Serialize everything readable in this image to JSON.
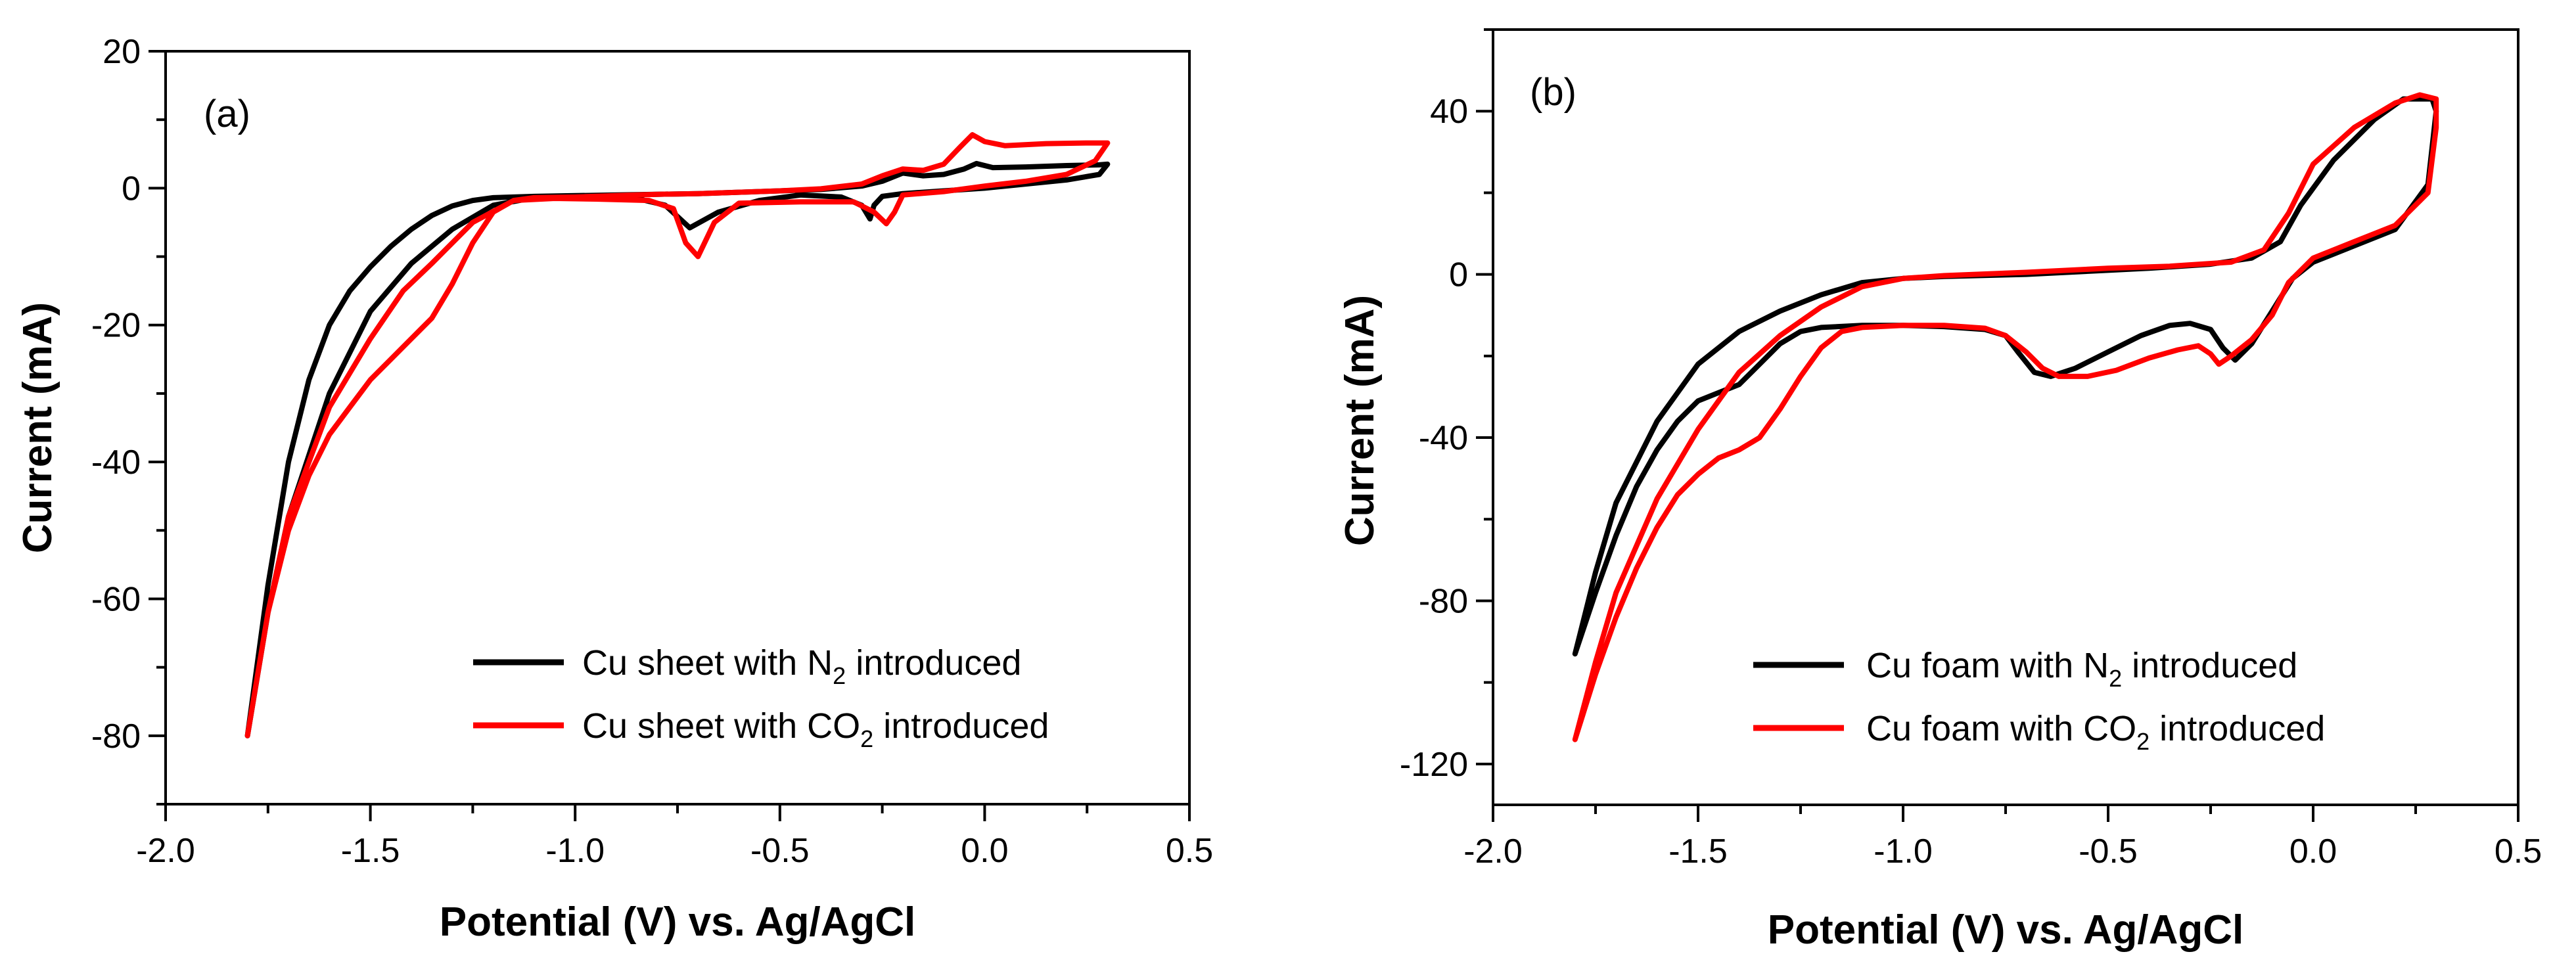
{
  "chart_data": [
    {
      "type": "line",
      "panel_label": "(a)",
      "xlabel": "Potential (V) vs. Ag/AgCl",
      "ylabel": "Current (mA)",
      "xlim": [
        -2.0,
        0.5
      ],
      "ylim": [
        -90,
        20
      ],
      "xticks": [
        -2.0,
        -1.5,
        -1.0,
        -0.5,
        0.0,
        0.5
      ],
      "xtick_labels": [
        "-2.0",
        "-1.5",
        "-1.0",
        "-0.5",
        "0.0",
        "0.5"
      ],
      "yticks": [
        -80,
        -60,
        -40,
        -20,
        0,
        20
      ],
      "ytick_labels": [
        "-80",
        "-60",
        "-40",
        "-20",
        "0",
        "20"
      ],
      "legend_position": "bottom-right",
      "series": [
        {
          "name_main": "Cu sheet with N",
          "name_sub": "2",
          "name_tail": " introduced",
          "color": "#000000",
          "points": [
            [
              -1.8,
              -80
            ],
            [
              -1.75,
              -58
            ],
            [
              -1.7,
              -40
            ],
            [
              -1.65,
              -28
            ],
            [
              -1.6,
              -20
            ],
            [
              -1.55,
              -15
            ],
            [
              -1.5,
              -11.5
            ],
            [
              -1.45,
              -8.5
            ],
            [
              -1.4,
              -6
            ],
            [
              -1.35,
              -4
            ],
            [
              -1.3,
              -2.6
            ],
            [
              -1.25,
              -1.8
            ],
            [
              -1.2,
              -1.4
            ],
            [
              -1.1,
              -1.2
            ],
            [
              -1.0,
              -1.1
            ],
            [
              -0.9,
              -1.0
            ],
            [
              -0.8,
              -0.9
            ],
            [
              -0.7,
              -0.8
            ],
            [
              -0.6,
              -0.6
            ],
            [
              -0.5,
              -0.4
            ],
            [
              -0.4,
              -0.2
            ],
            [
              -0.3,
              0.3
            ],
            [
              -0.25,
              1.0
            ],
            [
              -0.2,
              2.2
            ],
            [
              -0.15,
              1.8
            ],
            [
              -0.1,
              2.0
            ],
            [
              -0.05,
              2.8
            ],
            [
              -0.02,
              3.6
            ],
            [
              0.02,
              3.0
            ],
            [
              0.1,
              3.1
            ],
            [
              0.2,
              3.3
            ],
            [
              0.28,
              3.4
            ],
            [
              0.3,
              3.5
            ],
            [
              0.28,
              2.0
            ],
            [
              0.2,
              1.2
            ],
            [
              0.1,
              0.6
            ],
            [
              0.0,
              0.0
            ],
            [
              -0.1,
              -0.4
            ],
            [
              -0.2,
              -0.8
            ],
            [
              -0.25,
              -1.2
            ],
            [
              -0.27,
              -2.5
            ],
            [
              -0.28,
              -4.5
            ],
            [
              -0.3,
              -2.5
            ],
            [
              -0.35,
              -1.3
            ],
            [
              -0.45,
              -1.0
            ],
            [
              -0.55,
              -1.8
            ],
            [
              -0.65,
              -3.5
            ],
            [
              -0.72,
              -5.8
            ],
            [
              -0.78,
              -2.5
            ],
            [
              -0.85,
              -1.5
            ],
            [
              -1.0,
              -1.3
            ],
            [
              -1.1,
              -1.4
            ],
            [
              -1.2,
              -2.5
            ],
            [
              -1.3,
              -6
            ],
            [
              -1.4,
              -11
            ],
            [
              -1.5,
              -18
            ],
            [
              -1.6,
              -30
            ],
            [
              -1.7,
              -48
            ],
            [
              -1.75,
              -62
            ],
            [
              -1.8,
              -80
            ]
          ]
        },
        {
          "name_main": "Cu sheet with CO",
          "name_sub": "2",
          "name_tail": " introduced",
          "color": "#ff0000",
          "points": [
            [
              -1.8,
              -80
            ],
            [
              -1.75,
              -62
            ],
            [
              -1.7,
              -50
            ],
            [
              -1.65,
              -42
            ],
            [
              -1.6,
              -36
            ],
            [
              -1.55,
              -32
            ],
            [
              -1.5,
              -28
            ],
            [
              -1.45,
              -25
            ],
            [
              -1.4,
              -22
            ],
            [
              -1.35,
              -19
            ],
            [
              -1.3,
              -14
            ],
            [
              -1.25,
              -8
            ],
            [
              -1.2,
              -3.5
            ],
            [
              -1.15,
              -1.8
            ],
            [
              -1.1,
              -1.4
            ],
            [
              -1.0,
              -1.3
            ],
            [
              -0.9,
              -1.1
            ],
            [
              -0.8,
              -0.9
            ],
            [
              -0.7,
              -0.8
            ],
            [
              -0.6,
              -0.6
            ],
            [
              -0.5,
              -0.4
            ],
            [
              -0.4,
              -0.1
            ],
            [
              -0.3,
              0.6
            ],
            [
              -0.25,
              1.8
            ],
            [
              -0.2,
              2.8
            ],
            [
              -0.15,
              2.6
            ],
            [
              -0.1,
              3.5
            ],
            [
              -0.06,
              6.0
            ],
            [
              -0.03,
              7.8
            ],
            [
              0.0,
              6.8
            ],
            [
              0.05,
              6.2
            ],
            [
              0.15,
              6.5
            ],
            [
              0.25,
              6.6
            ],
            [
              0.3,
              6.6
            ],
            [
              0.27,
              4.0
            ],
            [
              0.2,
              2.0
            ],
            [
              0.1,
              1.0
            ],
            [
              0.0,
              0.3
            ],
            [
              -0.1,
              -0.5
            ],
            [
              -0.2,
              -1.0
            ],
            [
              -0.22,
              -3.5
            ],
            [
              -0.24,
              -5.2
            ],
            [
              -0.27,
              -3.5
            ],
            [
              -0.32,
              -2.0
            ],
            [
              -0.45,
              -2.0
            ],
            [
              -0.6,
              -2.2
            ],
            [
              -0.66,
              -5
            ],
            [
              -0.7,
              -10
            ],
            [
              -0.73,
              -8
            ],
            [
              -0.76,
              -3
            ],
            [
              -0.82,
              -1.8
            ],
            [
              -0.95,
              -1.6
            ],
            [
              -1.05,
              -1.5
            ],
            [
              -1.15,
              -1.8
            ],
            [
              -1.25,
              -5
            ],
            [
              -1.35,
              -11
            ],
            [
              -1.42,
              -15
            ],
            [
              -1.5,
              -22
            ],
            [
              -1.6,
              -32
            ],
            [
              -1.7,
              -48
            ],
            [
              -1.75,
              -62
            ],
            [
              -1.8,
              -80
            ]
          ]
        }
      ]
    },
    {
      "type": "line",
      "panel_label": "(b)",
      "xlabel": "Potential (V) vs. Ag/AgCl",
      "ylabel": "Current (mA)",
      "xlim": [
        -2.0,
        0.5
      ],
      "ylim": [
        -130,
        60
      ],
      "xticks": [
        -2.0,
        -1.5,
        -1.0,
        -0.5,
        0.0,
        0.5
      ],
      "xtick_labels": [
        "-2.0",
        "-1.5",
        "-1.0",
        "-0.5",
        "0.0",
        "0.5"
      ],
      "yticks": [
        -120,
        -80,
        -40,
        0,
        40
      ],
      "ytick_labels": [
        "-120",
        "-80",
        "-40",
        "0",
        "40"
      ],
      "legend_position": "bottom-right",
      "series": [
        {
          "name_main": "Cu foam with N",
          "name_sub": "2",
          "name_tail": " introduced",
          "color": "#000000",
          "points": [
            [
              -1.8,
              -93
            ],
            [
              -1.75,
              -78
            ],
            [
              -1.7,
              -64
            ],
            [
              -1.65,
              -52
            ],
            [
              -1.6,
              -43
            ],
            [
              -1.55,
              -36
            ],
            [
              -1.5,
              -31
            ],
            [
              -1.45,
              -29
            ],
            [
              -1.4,
              -27
            ],
            [
              -1.35,
              -22
            ],
            [
              -1.3,
              -17
            ],
            [
              -1.25,
              -14
            ],
            [
              -1.2,
              -13
            ],
            [
              -1.1,
              -12.5
            ],
            [
              -1.0,
              -12.5
            ],
            [
              -0.9,
              -12.8
            ],
            [
              -0.8,
              -13.5
            ],
            [
              -0.75,
              -15
            ],
            [
              -0.72,
              -19
            ],
            [
              -0.68,
              -24
            ],
            [
              -0.64,
              -25
            ],
            [
              -0.58,
              -23
            ],
            [
              -0.5,
              -19
            ],
            [
              -0.42,
              -15
            ],
            [
              -0.35,
              -12.5
            ],
            [
              -0.3,
              -12
            ],
            [
              -0.25,
              -13.5
            ],
            [
              -0.22,
              -18
            ],
            [
              -0.19,
              -21
            ],
            [
              -0.15,
              -17
            ],
            [
              -0.1,
              -9
            ],
            [
              -0.05,
              -1
            ],
            [
              0.0,
              3
            ],
            [
              0.1,
              7
            ],
            [
              0.2,
              11
            ],
            [
              0.28,
              22
            ],
            [
              0.3,
              40
            ],
            [
              0.29,
              43
            ],
            [
              0.22,
              43
            ],
            [
              0.15,
              38
            ],
            [
              0.05,
              28
            ],
            [
              -0.03,
              17
            ],
            [
              -0.08,
              8
            ],
            [
              -0.15,
              4
            ],
            [
              -0.25,
              2.5
            ],
            [
              -0.4,
              1.5
            ],
            [
              -0.5,
              1
            ],
            [
              -0.7,
              0
            ],
            [
              -0.9,
              -0.5
            ],
            [
              -1.0,
              -1
            ],
            [
              -1.1,
              -2
            ],
            [
              -1.2,
              -5
            ],
            [
              -1.3,
              -9
            ],
            [
              -1.4,
              -14
            ],
            [
              -1.5,
              -22
            ],
            [
              -1.6,
              -36
            ],
            [
              -1.7,
              -56
            ],
            [
              -1.75,
              -73
            ],
            [
              -1.8,
              -93
            ]
          ]
        },
        {
          "name_main": "Cu foam with CO",
          "name_sub": "2",
          "name_tail": " introduced",
          "color": "#ff0000",
          "points": [
            [
              -1.8,
              -114
            ],
            [
              -1.75,
              -98
            ],
            [
              -1.7,
              -84
            ],
            [
              -1.65,
              -72
            ],
            [
              -1.6,
              -62
            ],
            [
              -1.55,
              -54
            ],
            [
              -1.5,
              -49
            ],
            [
              -1.45,
              -45
            ],
            [
              -1.4,
              -43
            ],
            [
              -1.35,
              -40
            ],
            [
              -1.3,
              -33
            ],
            [
              -1.25,
              -25
            ],
            [
              -1.2,
              -18
            ],
            [
              -1.15,
              -14
            ],
            [
              -1.1,
              -13
            ],
            [
              -1.0,
              -12.5
            ],
            [
              -0.9,
              -12.5
            ],
            [
              -0.8,
              -13.2
            ],
            [
              -0.75,
              -15
            ],
            [
              -0.7,
              -19
            ],
            [
              -0.66,
              -23
            ],
            [
              -0.62,
              -25
            ],
            [
              -0.55,
              -25
            ],
            [
              -0.48,
              -23.5
            ],
            [
              -0.4,
              -20.5
            ],
            [
              -0.33,
              -18.5
            ],
            [
              -0.28,
              -17.5
            ],
            [
              -0.25,
              -19.5
            ],
            [
              -0.23,
              -22
            ],
            [
              -0.2,
              -20
            ],
            [
              -0.15,
              -16
            ],
            [
              -0.1,
              -10
            ],
            [
              -0.06,
              -2
            ],
            [
              0.0,
              4
            ],
            [
              0.1,
              8
            ],
            [
              0.2,
              12
            ],
            [
              0.28,
              20
            ],
            [
              0.3,
              36
            ],
            [
              0.3,
              43
            ],
            [
              0.26,
              44
            ],
            [
              0.2,
              42
            ],
            [
              0.1,
              36
            ],
            [
              0.0,
              27
            ],
            [
              -0.06,
              15
            ],
            [
              -0.12,
              6
            ],
            [
              -0.2,
              3
            ],
            [
              -0.35,
              2
            ],
            [
              -0.5,
              1.5
            ],
            [
              -0.7,
              0.5
            ],
            [
              -0.9,
              -0.3
            ],
            [
              -1.0,
              -1
            ],
            [
              -1.1,
              -3
            ],
            [
              -1.2,
              -8
            ],
            [
              -1.3,
              -15
            ],
            [
              -1.4,
              -24
            ],
            [
              -1.5,
              -38
            ],
            [
              -1.6,
              -55
            ],
            [
              -1.7,
              -78
            ],
            [
              -1.75,
              -95
            ],
            [
              -1.8,
              -114
            ]
          ]
        }
      ]
    }
  ]
}
